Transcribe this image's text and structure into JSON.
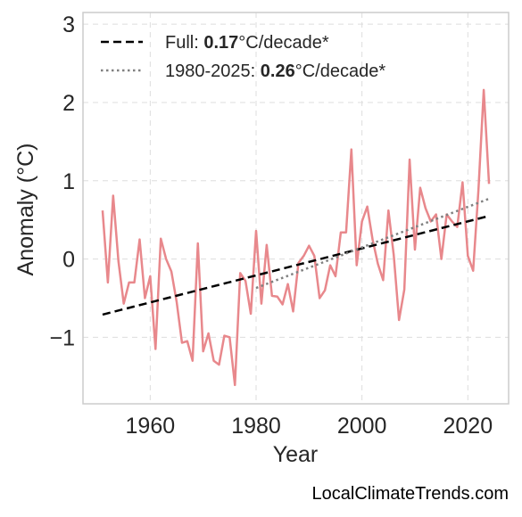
{
  "chart_data": {
    "type": "line",
    "xlabel": "Year",
    "ylabel": "Anomaly (°C)",
    "xlim": [
      1947.3,
      2027.7
    ],
    "ylim": [
      -1.85,
      3.15
    ],
    "x_ticks": [
      1960,
      1980,
      2000,
      2020
    ],
    "y_ticks": [
      3,
      2,
      1,
      0,
      -1
    ],
    "y_tick_labels": [
      "3",
      "2",
      "1",
      "0",
      "−1"
    ],
    "grid": true,
    "legend_position": "top-left",
    "series": [
      {
        "color": "#e8888c",
        "x": [
          1951,
          1952,
          1953,
          1954,
          1955,
          1956,
          1957,
          1958,
          1959,
          1960,
          1961,
          1962,
          1963,
          1964,
          1965,
          1966,
          1967,
          1968,
          1969,
          1970,
          1971,
          1972,
          1973,
          1974,
          1975,
          1976,
          1977,
          1978,
          1979,
          1980,
          1981,
          1982,
          1983,
          1984,
          1985,
          1986,
          1987,
          1988,
          1989,
          1990,
          1991,
          1992,
          1993,
          1994,
          1995,
          1996,
          1997,
          1998,
          1999,
          2000,
          2001,
          2002,
          2003,
          2004,
          2005,
          2006,
          2007,
          2008,
          2009,
          2010,
          2011,
          2012,
          2013,
          2014,
          2015,
          2016,
          2017,
          2018,
          2019,
          2020,
          2021,
          2022,
          2023,
          2024
        ],
        "y": [
          0.62,
          -0.3,
          0.81,
          -0.03,
          -0.57,
          -0.3,
          -0.3,
          0.25,
          -0.5,
          -0.22,
          -1.15,
          0.26,
          0.0,
          -0.16,
          -0.55,
          -1.07,
          -1.05,
          -1.3,
          0.2,
          -1.18,
          -0.95,
          -1.3,
          -1.35,
          -0.98,
          -1.0,
          -1.61,
          -0.18,
          -0.28,
          -0.7,
          0.36,
          -0.57,
          0.18,
          -0.47,
          -0.48,
          -0.58,
          -0.32,
          -0.67,
          -0.05,
          0.04,
          0.17,
          0.04,
          -0.5,
          -0.4,
          -0.08,
          -0.22,
          0.34,
          0.34,
          1.4,
          -0.08,
          0.48,
          0.67,
          0.25,
          -0.06,
          -0.27,
          0.62,
          0.05,
          -0.78,
          -0.39,
          1.27,
          0.12,
          0.91,
          0.65,
          0.48,
          0.57,
          0.0,
          0.57,
          0.48,
          0.41,
          0.98,
          0.04,
          -0.15,
          0.88,
          2.16,
          0.96
        ]
      },
      {
        "name": "Full",
        "style": "dashed",
        "color": "#000000",
        "x": [
          1951,
          2024
        ],
        "y": [
          -0.71,
          0.55
        ],
        "rate": "0.17",
        "unit": "°C/decade*"
      },
      {
        "name": "1980-2025",
        "style": "dotted",
        "color": "#808080",
        "x": [
          1980,
          2024
        ],
        "y": [
          -0.37,
          0.77
        ],
        "rate": "0.26",
        "unit": "°C/decade*"
      }
    ],
    "legend": [
      {
        "label": "Full: ",
        "value": "0.17",
        "unit": "°C/decade*"
      },
      {
        "label": "1980-2025: ",
        "value": "0.26",
        "unit": "°C/decade*"
      }
    ]
  },
  "watermark": "LocalClimateTrends.com"
}
